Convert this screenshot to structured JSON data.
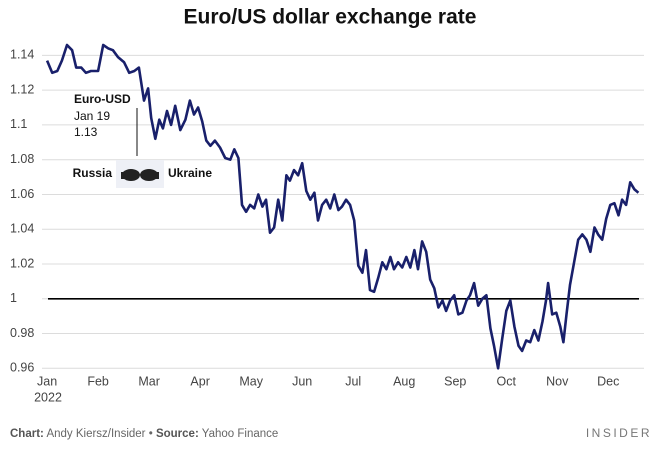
{
  "chart_data": {
    "type": "line",
    "title": "Euro/US dollar exchange rate",
    "year_label": "2022",
    "xlim": [
      -0.1,
      11.7
    ],
    "xticks": [
      {
        "value": 0,
        "label": "Jan"
      },
      {
        "value": 1,
        "label": "Feb"
      },
      {
        "value": 2,
        "label": "Mar"
      },
      {
        "value": 3,
        "label": "Apr"
      },
      {
        "value": 4,
        "label": "May"
      },
      {
        "value": 5,
        "label": "Jun"
      },
      {
        "value": 6,
        "label": "Jul"
      },
      {
        "value": 7,
        "label": "Aug"
      },
      {
        "value": 8,
        "label": "Sep"
      },
      {
        "value": 9,
        "label": "Oct"
      },
      {
        "value": 10,
        "label": "Nov"
      },
      {
        "value": 11,
        "label": "Dec"
      }
    ],
    "ylim": [
      0.955,
      1.15
    ],
    "yticks": [
      0.96,
      0.98,
      1,
      1.02,
      1.04,
      1.06,
      1.08,
      1.1,
      1.12,
      1.14
    ],
    "grid": true,
    "reference_line": 1,
    "reference_color": "#000000",
    "x": [
      0,
      0.1,
      0.2,
      0.29,
      0.39,
      0.49,
      0.57,
      0.67,
      0.76,
      0.86,
      1.0,
      1.1,
      1.2,
      1.29,
      1.39,
      1.51,
      1.61,
      1.71,
      1.8,
      1.9,
      1.98,
      2.04,
      2.12,
      2.2,
      2.27,
      2.35,
      2.43,
      2.51,
      2.61,
      2.71,
      2.8,
      2.88,
      2.96,
      3.04,
      3.12,
      3.2,
      3.29,
      3.39,
      3.49,
      3.59,
      3.67,
      3.75,
      3.82,
      3.9,
      3.98,
      4.06,
      4.14,
      4.22,
      4.29,
      4.37,
      4.45,
      4.53,
      4.61,
      4.69,
      4.76,
      4.84,
      4.92,
      5.0,
      5.08,
      5.16,
      5.24,
      5.31,
      5.39,
      5.47,
      5.55,
      5.63,
      5.71,
      5.78,
      5.86,
      5.94,
      6.02,
      6.1,
      6.18,
      6.25,
      6.33,
      6.41,
      6.49,
      6.57,
      6.65,
      6.73,
      6.8,
      6.88,
      6.96,
      7.04,
      7.12,
      7.2,
      7.27,
      7.35,
      7.43,
      7.51,
      7.59,
      7.67,
      7.75,
      7.82,
      7.9,
      7.98,
      8.06,
      8.14,
      8.22,
      8.29,
      8.37,
      8.45,
      8.53,
      8.61,
      8.69,
      8.76,
      8.84,
      8.92,
      9.0,
      9.08,
      9.16,
      9.24,
      9.31,
      9.39,
      9.47,
      9.55,
      9.63,
      9.71,
      9.78,
      9.82,
      9.9,
      9.98,
      10.06,
      10.12,
      10.18,
      10.25,
      10.33,
      10.41,
      10.49,
      10.57,
      10.65,
      10.73,
      10.8,
      10.88,
      10.96,
      11.04,
      11.12,
      11.2,
      11.27,
      11.35,
      11.43,
      11.51,
      11.59
    ],
    "series": [
      {
        "name": "Euro-USD",
        "color": "#19206b",
        "values": [
          1.137,
          1.13,
          1.131,
          1.137,
          1.146,
          1.143,
          1.133,
          1.133,
          1.13,
          1.131,
          1.131,
          1.146,
          1.144,
          1.143,
          1.139,
          1.136,
          1.13,
          1.131,
          1.133,
          1.114,
          1.121,
          1.104,
          1.092,
          1.103,
          1.098,
          1.108,
          1.1,
          1.111,
          1.097,
          1.103,
          1.114,
          1.106,
          1.11,
          1.102,
          1.091,
          1.088,
          1.091,
          1.087,
          1.081,
          1.08,
          1.086,
          1.081,
          1.054,
          1.05,
          1.054,
          1.052,
          1.06,
          1.053,
          1.057,
          1.038,
          1.041,
          1.057,
          1.045,
          1.071,
          1.068,
          1.074,
          1.071,
          1.078,
          1.062,
          1.057,
          1.061,
          1.045,
          1.054,
          1.057,
          1.052,
          1.06,
          1.051,
          1.053,
          1.057,
          1.054,
          1.045,
          1.019,
          1.015,
          1.028,
          1.005,
          1.004,
          1.012,
          1.021,
          1.017,
          1.024,
          1.017,
          1.021,
          1.018,
          1.024,
          1.018,
          1.028,
          1.017,
          1.033,
          1.027,
          1.011,
          1.006,
          0.995,
          0.999,
          0.993,
          0.999,
          1.002,
          0.991,
          0.992,
          0.999,
          1.002,
          1.009,
          0.996,
          1.0,
          1.002,
          0.983,
          0.973,
          0.96,
          0.977,
          0.993,
          0.999,
          0.984,
          0.973,
          0.97,
          0.976,
          0.975,
          0.982,
          0.976,
          0.987,
          0.999,
          1.009,
          0.991,
          0.992,
          0.984,
          0.975,
          0.991,
          1.008,
          1.021,
          1.034,
          1.037,
          1.034,
          1.027,
          1.041,
          1.037,
          1.034,
          1.046,
          1.054,
          1.055,
          1.048,
          1.057,
          1.054,
          1.067,
          1.063,
          1.061
        ]
      }
    ],
    "annotations": {
      "series_label": "Euro-USD",
      "date": "Jan 19",
      "value": "1.13",
      "left_label": "Russia",
      "right_label": "Ukraine"
    },
    "footer": {
      "credit_label": "Chart:",
      "credit": "Andy Kiersz/Insider",
      "separator": "•",
      "source_label": "Source:",
      "source": "Yahoo Finance",
      "brand": "INSIDER"
    }
  }
}
